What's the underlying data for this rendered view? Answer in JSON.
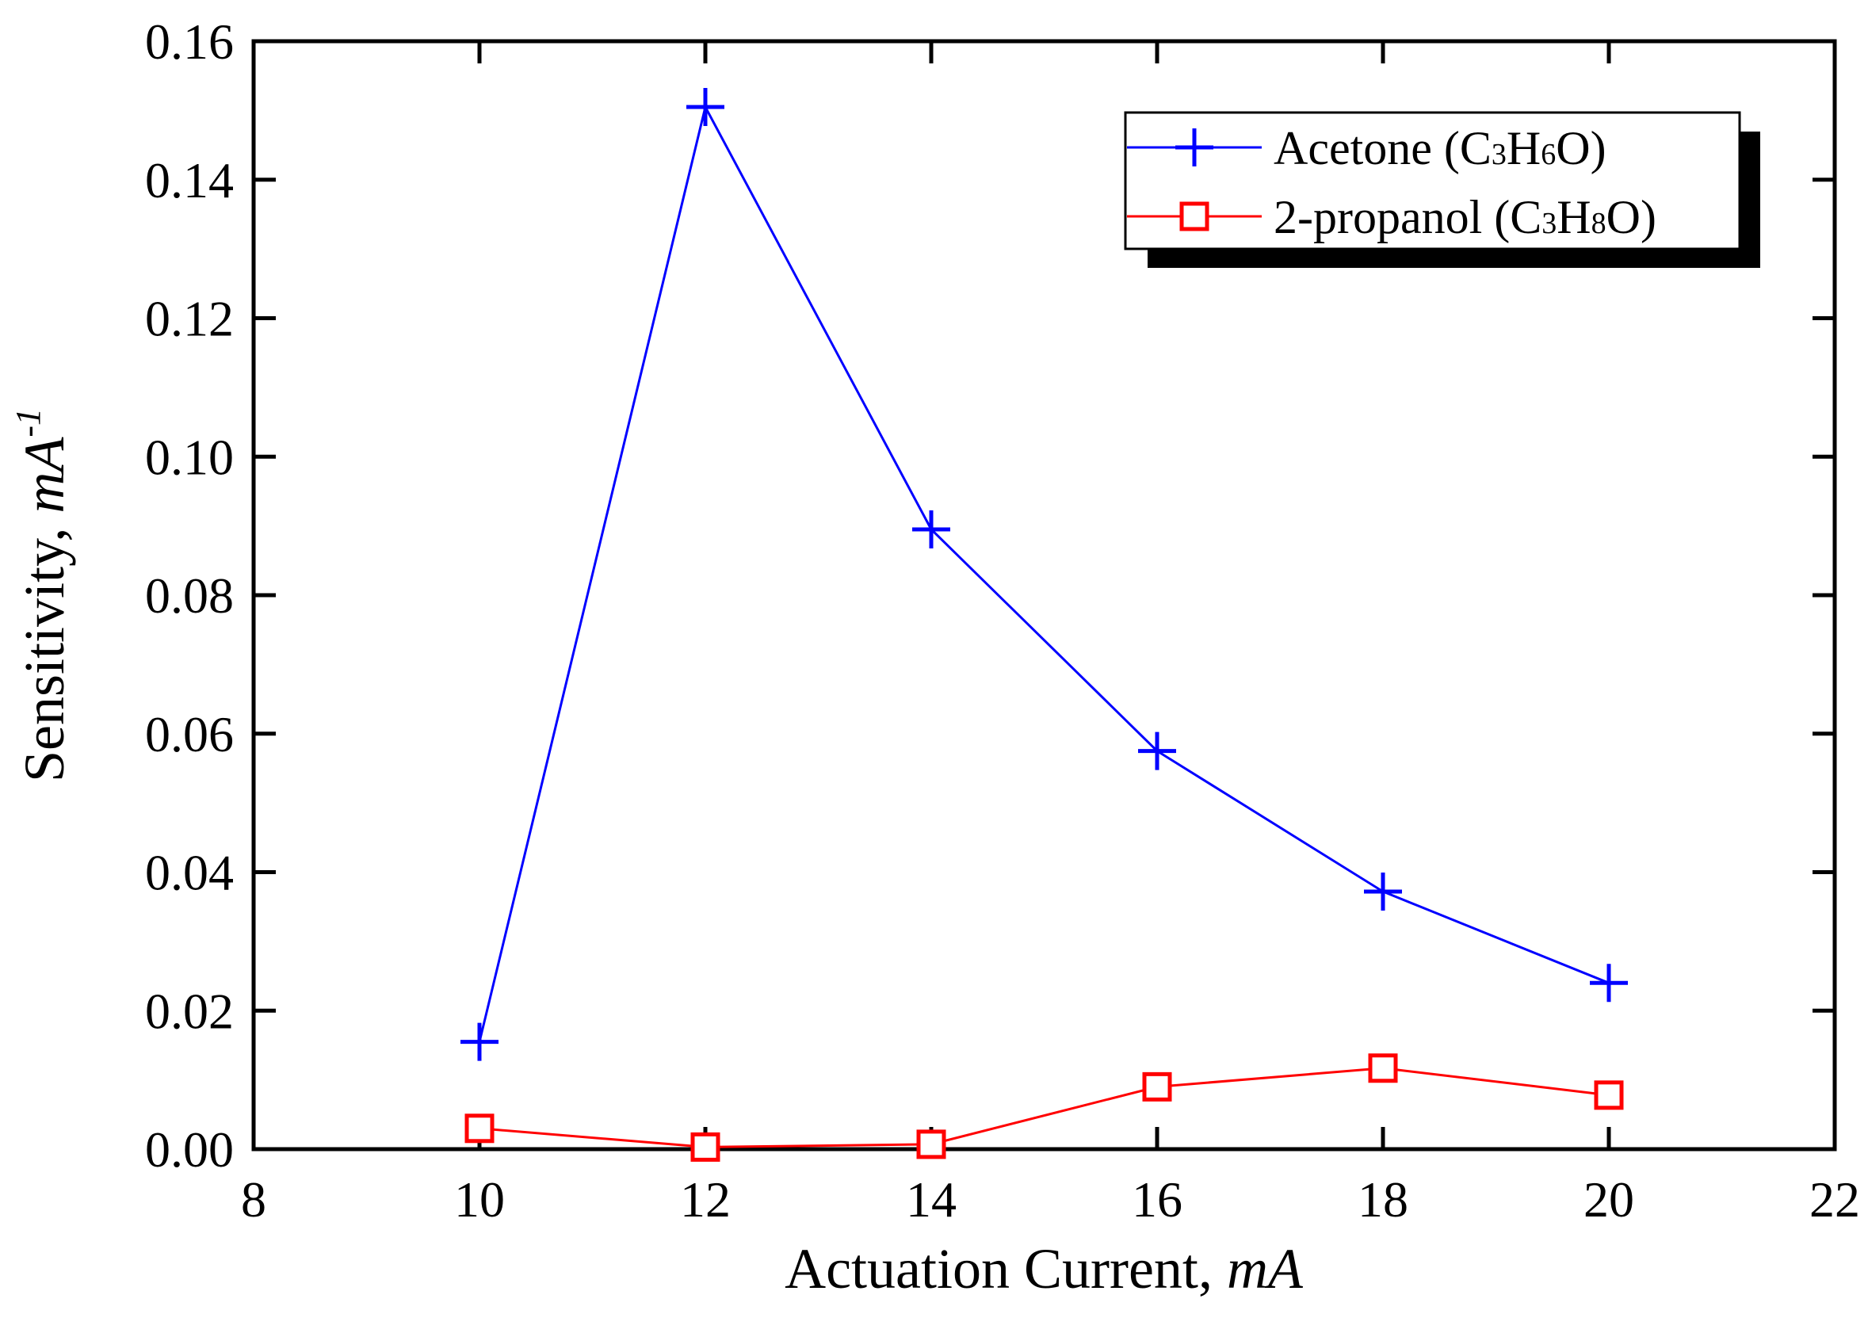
{
  "chart_data": {
    "type": "line",
    "title": "",
    "xlabel": "Actuation Current, ",
    "xlabel_unit": "mA",
    "ylabel": "Sensitivity, ",
    "ylabel_unit": "mA",
    "ylabel_exp": "-1",
    "xlim": [
      8,
      22
    ],
    "ylim": [
      0,
      0.16
    ],
    "xticks": [
      8,
      10,
      12,
      14,
      16,
      18,
      20,
      22
    ],
    "yticks": [
      0,
      0.02,
      0.04,
      0.06,
      0.08,
      0.1,
      0.12,
      0.14,
      0.16
    ],
    "ytick_labels": [
      "0.00",
      "0.02",
      "0.04",
      "0.06",
      "0.08",
      "0.10",
      "0.12",
      "0.14",
      "0.16"
    ],
    "grid": false,
    "legend_position": "top-right",
    "series": [
      {
        "name": "Acetone",
        "formula": [
          "C",
          "3",
          "H",
          "6",
          "O"
        ],
        "marker": "plus",
        "color": "#0000ff",
        "x": [
          10,
          12,
          14,
          16,
          18,
          20
        ],
        "y": [
          0.0155,
          0.1505,
          0.0895,
          0.0575,
          0.0372,
          0.024
        ]
      },
      {
        "name": "2-propanol",
        "formula": [
          "C",
          "3",
          "H",
          "8",
          "O"
        ],
        "marker": "square",
        "color": "#ff0000",
        "x": [
          10,
          12,
          14,
          16,
          18,
          20
        ],
        "y": [
          0.003,
          0.0003,
          0.0007,
          0.009,
          0.0117,
          0.0078
        ]
      }
    ]
  }
}
